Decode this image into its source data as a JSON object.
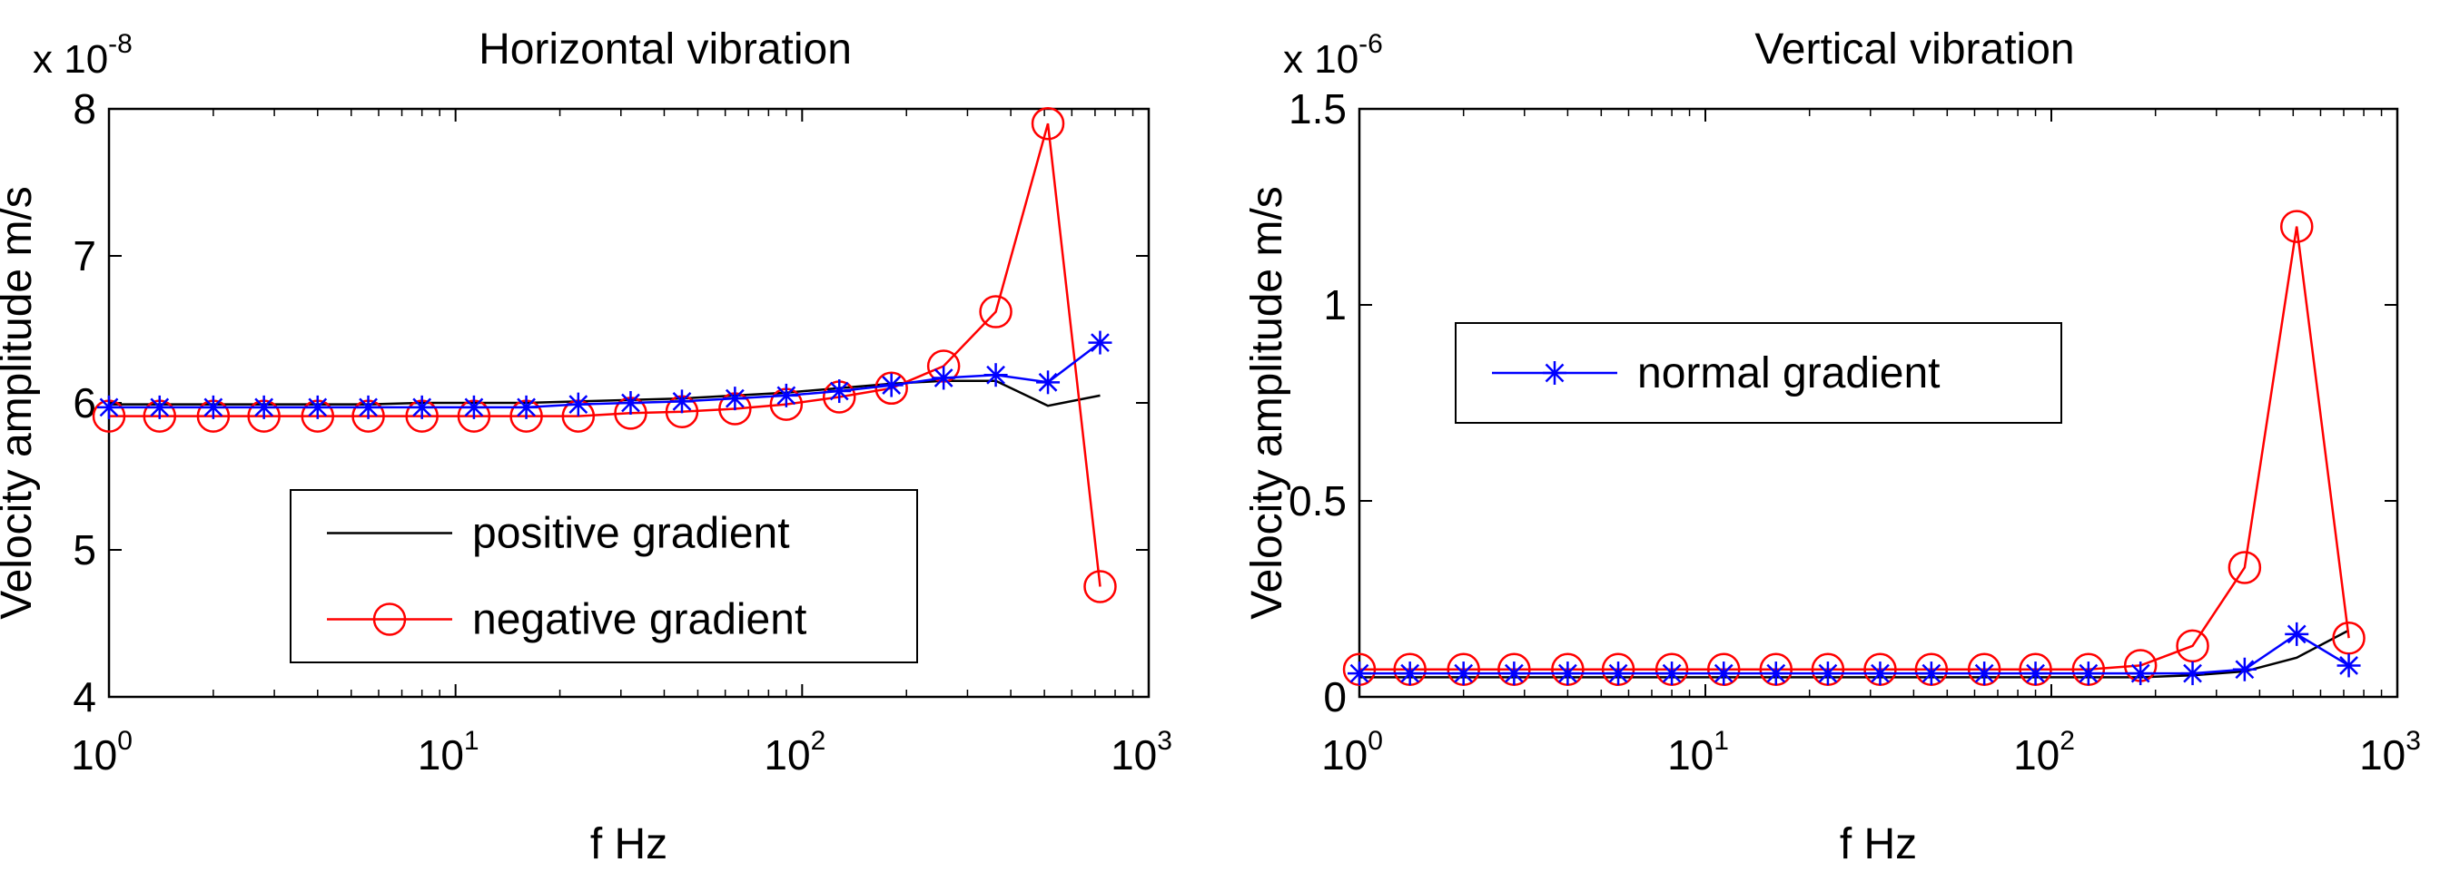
{
  "chart_data": [
    {
      "type": "line",
      "title": "Horizontal vibration",
      "xlabel": "f Hz",
      "ylabel": "Velocity amplitude m/s",
      "xscale": "log",
      "xlim": [
        1,
        1000
      ],
      "ylim": [
        4,
        8
      ],
      "y_multiplier_text": "x 10",
      "y_multiplier_exp": "-8",
      "x_ticks": [
        1,
        10,
        100,
        1000
      ],
      "x_tick_base": "10",
      "x_tick_exps": [
        "0",
        "1",
        "2",
        "3"
      ],
      "y_ticks": [
        4,
        5,
        6,
        7,
        8
      ],
      "y_tick_labels": [
        "4",
        "5",
        "6",
        "7",
        "8"
      ],
      "grid": false,
      "legend_position": "lower-center",
      "legend": [
        "positive gradient",
        "negative gradient"
      ],
      "x": [
        1,
        1.4,
        2,
        2.8,
        4,
        5.6,
        8,
        11.3,
        16,
        22.6,
        32,
        45,
        64,
        90,
        128,
        181,
        256,
        362,
        512,
        724
      ],
      "series": [
        {
          "name": "positive gradient",
          "color": "#000000",
          "marker": "none",
          "values": [
            5.99,
            5.99,
            5.99,
            5.99,
            5.99,
            5.99,
            6.0,
            6.0,
            6.0,
            6.01,
            6.02,
            6.03,
            6.05,
            6.07,
            6.1,
            6.13,
            6.15,
            6.15,
            5.98,
            6.05
          ]
        },
        {
          "name": "negative gradient",
          "color": "#ff0000",
          "marker": "circle",
          "values": [
            5.91,
            5.91,
            5.91,
            5.91,
            5.91,
            5.91,
            5.91,
            5.91,
            5.91,
            5.91,
            5.93,
            5.94,
            5.96,
            5.99,
            6.04,
            6.1,
            6.25,
            6.62,
            7.9,
            4.75
          ]
        },
        {
          "name": "normal gradient",
          "color": "#0000ff",
          "marker": "star",
          "in_legend": false,
          "values": [
            5.97,
            5.97,
            5.97,
            5.97,
            5.97,
            5.97,
            5.97,
            5.97,
            5.97,
            5.99,
            6.0,
            6.01,
            6.03,
            6.05,
            6.08,
            6.12,
            6.17,
            6.19,
            6.14,
            6.41
          ]
        }
      ]
    },
    {
      "type": "line",
      "title": "Vertical vibration",
      "xlabel": "f Hz",
      "ylabel": "Velocity amplitude m/s",
      "xscale": "log",
      "xlim": [
        1,
        1000
      ],
      "ylim": [
        0,
        1.5
      ],
      "y_multiplier_text": "x 10",
      "y_multiplier_exp": "-6",
      "x_ticks": [
        1,
        10,
        100,
        1000
      ],
      "x_tick_base": "10",
      "x_tick_exps": [
        "0",
        "1",
        "2",
        "3"
      ],
      "y_ticks": [
        0,
        0.5,
        1,
        1.5
      ],
      "y_tick_labels": [
        "0",
        "0.5",
        "1",
        "1.5"
      ],
      "grid": false,
      "legend_position": "upper-left",
      "legend": [
        "normal gradient"
      ],
      "x": [
        1,
        1.4,
        2,
        2.8,
        4,
        5.6,
        8,
        11.3,
        16,
        22.6,
        32,
        45,
        64,
        90,
        128,
        181,
        256,
        362,
        512,
        724
      ],
      "series": [
        {
          "name": "positive gradient",
          "color": "#000000",
          "marker": "none",
          "in_legend": false,
          "values": [
            0.05,
            0.05,
            0.05,
            0.05,
            0.05,
            0.05,
            0.05,
            0.05,
            0.05,
            0.05,
            0.05,
            0.05,
            0.05,
            0.05,
            0.05,
            0.05,
            0.055,
            0.065,
            0.1,
            0.17
          ]
        },
        {
          "name": "negative gradient",
          "color": "#ff0000",
          "marker": "circle",
          "in_legend": false,
          "values": [
            0.07,
            0.07,
            0.07,
            0.07,
            0.07,
            0.07,
            0.07,
            0.07,
            0.07,
            0.07,
            0.07,
            0.07,
            0.07,
            0.07,
            0.07,
            0.08,
            0.13,
            0.33,
            1.2,
            0.15
          ]
        },
        {
          "name": "normal gradient",
          "color": "#0000ff",
          "marker": "star",
          "values": [
            0.06,
            0.06,
            0.06,
            0.06,
            0.06,
            0.06,
            0.06,
            0.06,
            0.06,
            0.06,
            0.06,
            0.06,
            0.06,
            0.06,
            0.06,
            0.06,
            0.06,
            0.07,
            0.16,
            0.08
          ]
        }
      ]
    }
  ]
}
